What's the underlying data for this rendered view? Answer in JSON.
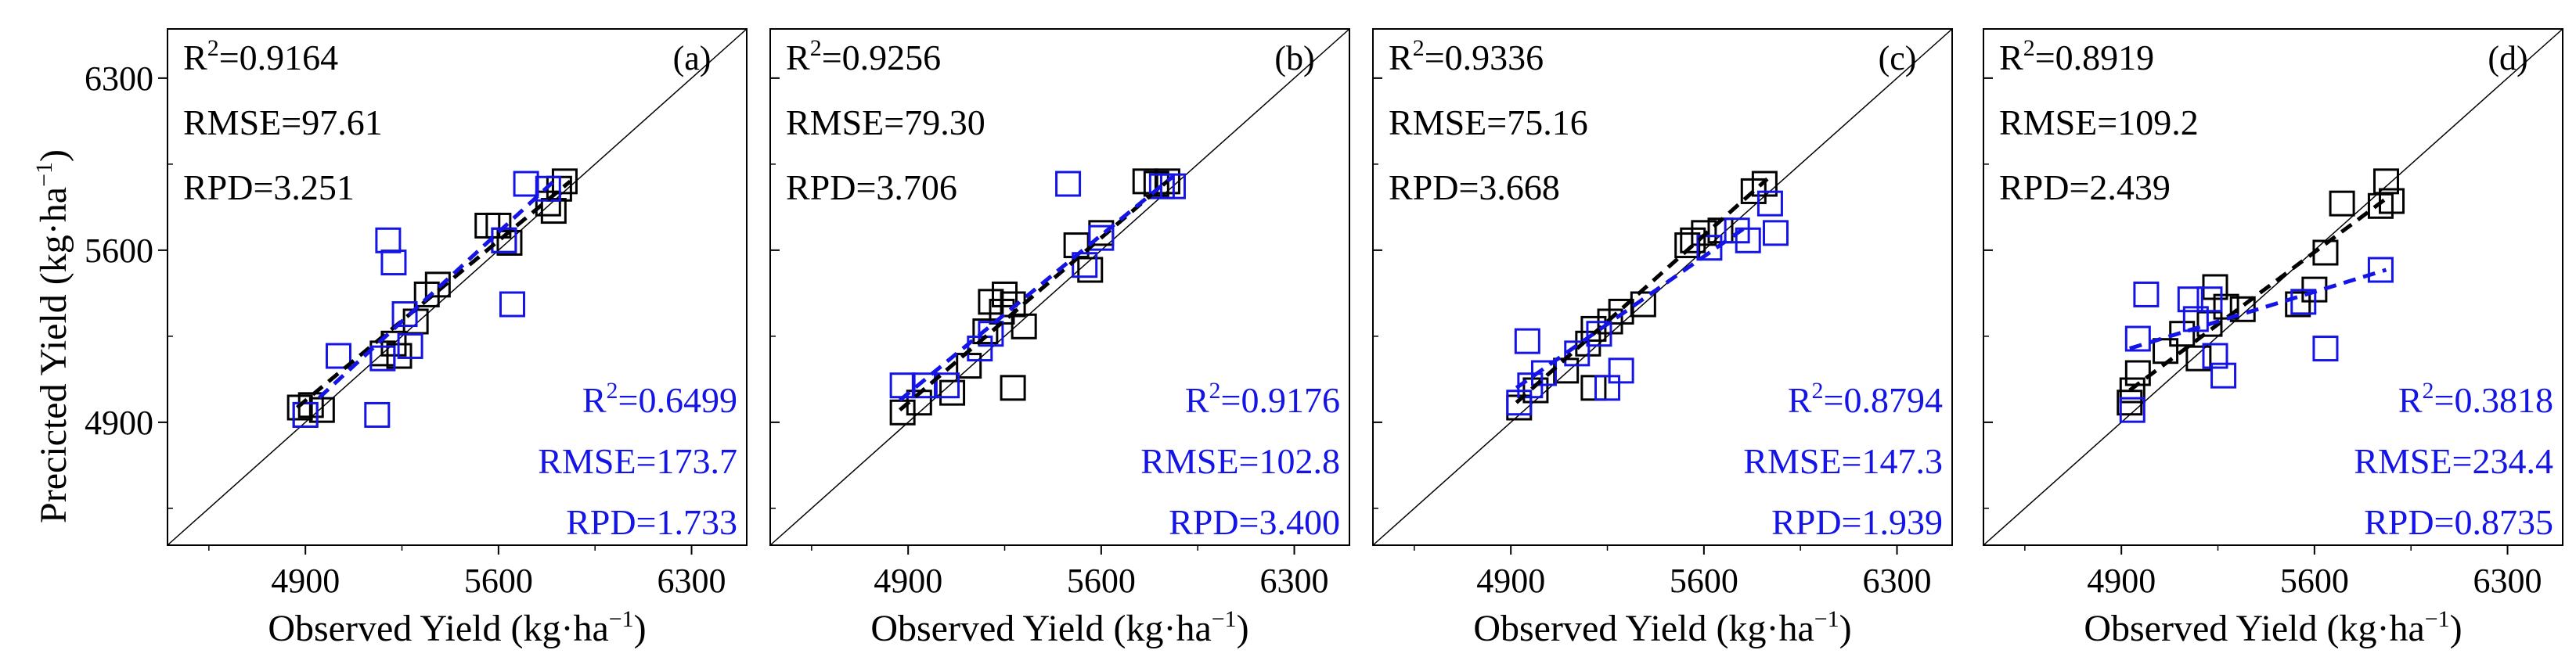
{
  "figure": {
    "ylabel_main": "Precicted Yield (kg·ha",
    "ylabel_sup": "−1",
    "ylabel_end": ")",
    "colors": {
      "calibration": "#000000",
      "validation": "#1414e6",
      "grid": "#000000"
    }
  },
  "chart_data": [
    {
      "type": "scatter",
      "tag": "(a)",
      "xlabel_main": "Observed Yield (kg·ha",
      "xlabel_sup": "−1",
      "xlabel_end": ")",
      "xlim": [
        4400,
        6500
      ],
      "ylim": [
        4400,
        6500
      ],
      "xticks": [
        "4900",
        "5600",
        "6300"
      ],
      "yticks": [
        "4900",
        "5600",
        "6300"
      ],
      "calibration": {
        "R2_prefix": "R",
        "R2_sup": "2",
        "R2_value": "=0.9164",
        "RMSE": "RMSE=97.61",
        "RPD": "RPD=3.251",
        "points": [
          [
            4880,
            4960
          ],
          [
            4900,
            4930
          ],
          [
            4920,
            4970
          ],
          [
            4960,
            4950
          ],
          [
            5180,
            5180
          ],
          [
            5220,
            5220
          ],
          [
            5240,
            5170
          ],
          [
            5300,
            5310
          ],
          [
            5340,
            5420
          ],
          [
            5380,
            5460
          ],
          [
            5560,
            5700
          ],
          [
            5600,
            5700
          ],
          [
            5620,
            5640
          ],
          [
            5640,
            5630
          ],
          [
            5780,
            5790
          ],
          [
            5800,
            5760
          ],
          [
            5820,
            5850
          ],
          [
            5840,
            5880
          ]
        ],
        "fit": [
          [
            4870,
            4960
          ],
          [
            5860,
            5880
          ]
        ]
      },
      "validation": {
        "R2_prefix": "R",
        "R2_sup": "2",
        "R2_value": "=0.6499",
        "RMSE": "RMSE=173.7",
        "RPD": "RPD=1.733",
        "points": [
          [
            4900,
            4930
          ],
          [
            5020,
            5170
          ],
          [
            5160,
            4930
          ],
          [
            5180,
            5160
          ],
          [
            5200,
            5640
          ],
          [
            5220,
            5550
          ],
          [
            5260,
            5340
          ],
          [
            5280,
            5210
          ],
          [
            5620,
            5640
          ],
          [
            5650,
            5380
          ],
          [
            5700,
            5870
          ],
          [
            5780,
            5850
          ]
        ],
        "fit": [
          [
            4950,
            5000
          ],
          [
            5800,
            5880
          ]
        ]
      }
    },
    {
      "type": "scatter",
      "tag": "(b)",
      "xlabel_main": "Observed Yield (kg·ha",
      "xlabel_sup": "−1",
      "xlabel_end": ")",
      "xlim": [
        4400,
        6500
      ],
      "ylim": [
        4400,
        6500
      ],
      "xticks": [
        "4900",
        "5600",
        "6300"
      ],
      "yticks": [
        "4900",
        "5600",
        "6300"
      ],
      "calibration": {
        "R2_prefix": "R",
        "R2_sup": "2",
        "R2_value": "=0.9256",
        "RMSE": "RMSE=79.30",
        "RPD": "RPD=3.706",
        "points": [
          [
            4880,
            4940
          ],
          [
            4940,
            4980
          ],
          [
            5060,
            5020
          ],
          [
            5120,
            5130
          ],
          [
            5180,
            5270
          ],
          [
            5200,
            5390
          ],
          [
            5240,
            5350
          ],
          [
            5250,
            5420
          ],
          [
            5280,
            5380
          ],
          [
            5320,
            5290
          ],
          [
            5280,
            5040
          ],
          [
            5510,
            5620
          ],
          [
            5560,
            5520
          ],
          [
            5600,
            5670
          ],
          [
            5760,
            5880
          ],
          [
            5800,
            5870
          ],
          [
            5840,
            5880
          ]
        ],
        "fit": [
          [
            4870,
            4950
          ],
          [
            5860,
            5900
          ]
        ]
      },
      "validation": {
        "R2_prefix": "R",
        "R2_sup": "2",
        "R2_value": "=0.9176",
        "RMSE": "RMSE=102.8",
        "RPD": "RPD=3.400",
        "points": [
          [
            4880,
            5050
          ],
          [
            4960,
            5050
          ],
          [
            5040,
            5050
          ],
          [
            5160,
            5200
          ],
          [
            5200,
            5260
          ],
          [
            5480,
            5870
          ],
          [
            5540,
            5540
          ],
          [
            5600,
            5650
          ],
          [
            5820,
            5860
          ],
          [
            5860,
            5860
          ]
        ],
        "fit": [
          [
            4870,
            4990
          ],
          [
            5860,
            5900
          ]
        ]
      }
    },
    {
      "type": "scatter",
      "tag": "(c)",
      "xlabel_main": "Observed Yield (kg·ha",
      "xlabel_sup": "−1",
      "xlabel_end": ")",
      "xlim": [
        4400,
        6500
      ],
      "ylim": [
        4400,
        6500
      ],
      "xticks": [
        "4900",
        "5600",
        "6300"
      ],
      "yticks": [
        "4900",
        "5600",
        "6300"
      ],
      "calibration": {
        "R2_prefix": "R",
        "R2_sup": "2",
        "R2_value": "=0.9336",
        "RMSE": "RMSE=75.16",
        "RPD": "RPD=3.668",
        "points": [
          [
            4930,
            4960
          ],
          [
            4990,
            5030
          ],
          [
            5100,
            5110
          ],
          [
            5180,
            5220
          ],
          [
            5200,
            5280
          ],
          [
            5260,
            5310
          ],
          [
            5300,
            5350
          ],
          [
            5380,
            5380
          ],
          [
            5200,
            5040
          ],
          [
            5540,
            5620
          ],
          [
            5560,
            5640
          ],
          [
            5600,
            5670
          ],
          [
            5660,
            5680
          ],
          [
            5780,
            5840
          ],
          [
            5820,
            5870
          ]
        ],
        "fit": [
          [
            4920,
            4980
          ],
          [
            5830,
            5890
          ]
        ]
      },
      "validation": {
        "R2_prefix": "R",
        "R2_sup": "2",
        "R2_value": "=0.8794",
        "RMSE": "RMSE=147.3",
        "RPD": "RPD=1.939",
        "points": [
          [
            4930,
            4980
          ],
          [
            4970,
            5050
          ],
          [
            4960,
            5230
          ],
          [
            5020,
            5100
          ],
          [
            5140,
            5180
          ],
          [
            5220,
            5260
          ],
          [
            5250,
            5040
          ],
          [
            5300,
            5110
          ],
          [
            5620,
            5610
          ],
          [
            5720,
            5680
          ],
          [
            5760,
            5640
          ],
          [
            5840,
            5790
          ],
          [
            5860,
            5670
          ]
        ],
        "fit": [
          [
            4920,
            5040
          ],
          [
            5760,
            5700
          ]
        ]
      }
    },
    {
      "type": "scatter",
      "tag": "(d)",
      "xlabel_main": "Observed Yield (kg·ha",
      "xlabel_sup": "−1",
      "xlabel_end": ")",
      "xlim": [
        4400,
        6500
      ],
      "ylim": [
        4400,
        6500
      ],
      "xticks": [
        "4900",
        "5600",
        "6300"
      ],
      "yticks": [
        "4900",
        "5600",
        "6300"
      ],
      "calibration": {
        "R2_prefix": "R",
        "R2_sup": "2",
        "R2_value": "=0.8919",
        "RMSE": "RMSE=109.2",
        "RPD": "RPD=2.439",
        "points": [
          [
            4930,
            4980
          ],
          [
            4940,
            5030
          ],
          [
            4960,
            5100
          ],
          [
            5060,
            5190
          ],
          [
            5120,
            5260
          ],
          [
            5180,
            5160
          ],
          [
            5220,
            5300
          ],
          [
            5240,
            5450
          ],
          [
            5280,
            5370
          ],
          [
            5340,
            5360
          ],
          [
            5540,
            5380
          ],
          [
            5600,
            5440
          ],
          [
            5640,
            5590
          ],
          [
            5700,
            5790
          ],
          [
            5840,
            5780
          ],
          [
            5860,
            5880
          ],
          [
            5880,
            5800
          ]
        ],
        "fit": [
          [
            4930,
            5030
          ],
          [
            5860,
            5810
          ]
        ]
      },
      "validation": {
        "R2_prefix": "R",
        "R2_sup": "2",
        "R2_value": "=0.3818",
        "RMSE": "RMSE=234.4",
        "RPD": "RPD=0.8735",
        "points": [
          [
            4940,
            4950
          ],
          [
            4960,
            5240
          ],
          [
            4990,
            5420
          ],
          [
            5150,
            5400
          ],
          [
            5170,
            5320
          ],
          [
            5220,
            5400
          ],
          [
            5240,
            5170
          ],
          [
            5270,
            5090
          ],
          [
            5560,
            5390
          ],
          [
            5640,
            5200
          ],
          [
            5840,
            5520
          ]
        ],
        "fit": [
          [
            4930,
            5200
          ],
          [
            5860,
            5520
          ]
        ]
      }
    }
  ]
}
